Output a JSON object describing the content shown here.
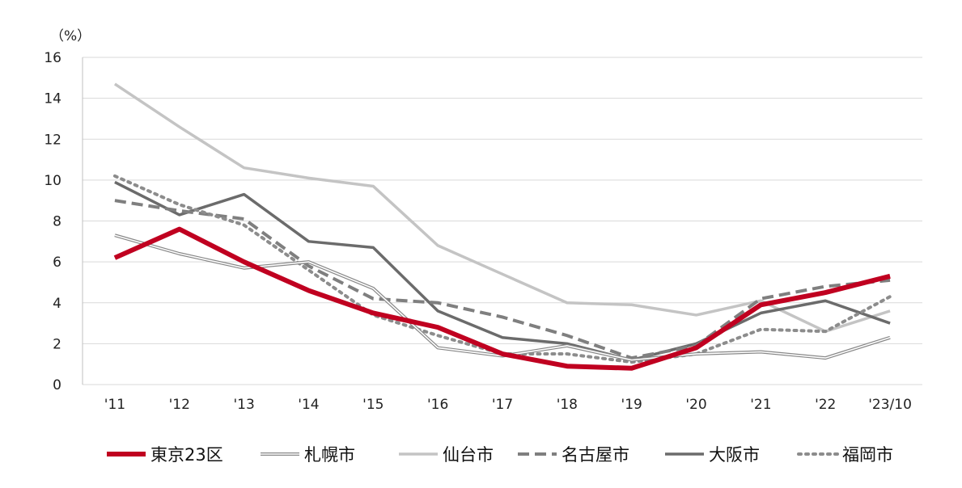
{
  "chart_data": {
    "type": "line",
    "title": "",
    "ylabel": "",
    "y_unit": "（%）",
    "xlabel": "",
    "categories": [
      "'11",
      "'12",
      "'13",
      "'14",
      "'15",
      "'16",
      "'17",
      "'18",
      "'19",
      "'20",
      "'21",
      "'22",
      "'23/10"
    ],
    "ylim": [
      0,
      16
    ],
    "yticks": [
      0,
      2,
      4,
      6,
      8,
      10,
      12,
      14,
      16
    ],
    "grid": "horizontal",
    "legend_position": "bottom",
    "series": [
      {
        "name": "東京23区",
        "color": "#c00020",
        "style": "thick-solid",
        "values": [
          6.2,
          7.6,
          6.0,
          4.6,
          3.5,
          2.8,
          1.5,
          0.9,
          0.8,
          1.8,
          3.9,
          4.5,
          5.3
        ]
      },
      {
        "name": "札幌市",
        "color": "#888888",
        "style": "double",
        "values": [
          7.3,
          6.4,
          5.7,
          6.0,
          4.7,
          1.8,
          1.4,
          1.9,
          1.2,
          1.5,
          1.6,
          1.3,
          2.3
        ]
      },
      {
        "name": "仙台市",
        "color": "#c4c4c4",
        "style": "solid",
        "values": [
          14.7,
          12.6,
          10.6,
          10.1,
          9.7,
          6.8,
          5.4,
          4.0,
          3.9,
          3.4,
          4.1,
          2.6,
          3.6
        ]
      },
      {
        "name": "名古屋市",
        "color": "#7f7f7f",
        "style": "dashed",
        "values": [
          9.0,
          8.5,
          8.1,
          5.8,
          4.2,
          4.0,
          3.3,
          2.4,
          1.3,
          1.9,
          4.2,
          4.8,
          5.1
        ]
      },
      {
        "name": "大阪市",
        "color": "#6b6b6b",
        "style": "solid",
        "values": [
          9.9,
          8.3,
          9.3,
          7.0,
          6.7,
          3.6,
          2.3,
          2.0,
          1.2,
          2.0,
          3.5,
          4.1,
          3.0
        ]
      },
      {
        "name": "福岡市",
        "color": "#8c8c8c",
        "style": "dotted",
        "values": [
          10.2,
          8.8,
          7.8,
          5.6,
          3.4,
          2.4,
          1.5,
          1.5,
          1.1,
          1.5,
          2.7,
          2.6,
          4.3
        ]
      }
    ]
  }
}
